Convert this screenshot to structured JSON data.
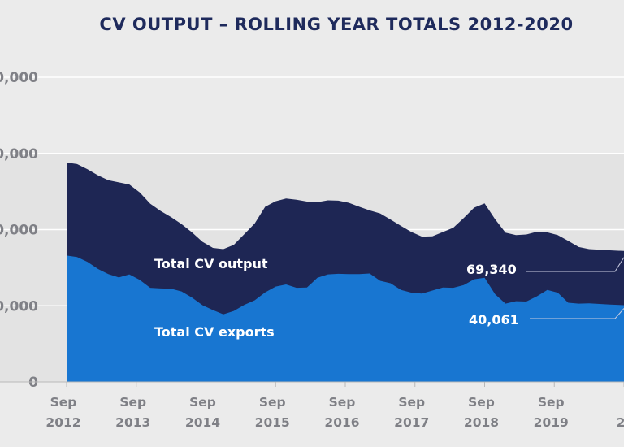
{
  "chart_data": {
    "type": "area",
    "title": "CV OUTPUT – ROLLING YEAR TOTALS 2012-2020",
    "xlabel": "",
    "ylabel": "",
    "ylim": [
      0,
      100000
    ],
    "y_ticks": [
      {
        "value": 0,
        "label": "0"
      },
      {
        "value": 25000,
        "label": "0,000"
      },
      {
        "value": 50000,
        "label": "0,000"
      },
      {
        "value": 75000,
        "label": "0,000"
      },
      {
        "value": 100000,
        "label": "0,000"
      }
    ],
    "x_ticks": [
      {
        "value": 2012.75,
        "line1": "Sep",
        "line2": "2012"
      },
      {
        "value": 2013.75,
        "line1": "Sep",
        "line2": "2013"
      },
      {
        "value": 2014.75,
        "line1": "Sep",
        "line2": "2014"
      },
      {
        "value": 2015.75,
        "line1": "Sep",
        "line2": "2015"
      },
      {
        "value": 2016.75,
        "line1": "Sep",
        "line2": "2016"
      },
      {
        "value": 2017.75,
        "line1": "Sep",
        "line2": "2017"
      },
      {
        "value": 2018.75,
        "line1": "Sep",
        "line2": "2018"
      },
      {
        "value": 2019.75,
        "line1": "Sep",
        "line2": "2019"
      },
      {
        "value": 2020.75,
        "line1": "",
        "line2": "2"
      }
    ],
    "grid": true,
    "x": [
      2012.75,
      2012.9,
      2013.05,
      2013.2,
      2013.35,
      2013.5,
      2013.65,
      2013.8,
      2013.95,
      2014.1,
      2014.25,
      2014.4,
      2014.55,
      2014.7,
      2014.85,
      2015.0,
      2015.15,
      2015.3,
      2015.45,
      2015.6,
      2015.75,
      2015.9,
      2016.05,
      2016.2,
      2016.35,
      2016.5,
      2016.65,
      2016.8,
      2016.95,
      2017.1,
      2017.25,
      2017.4,
      2017.55,
      2017.7,
      2017.85,
      2018.0,
      2018.15,
      2018.3,
      2018.45,
      2018.6,
      2018.75,
      2018.9,
      2019.05,
      2019.2,
      2019.35,
      2019.5,
      2019.65,
      2019.8,
      2019.95,
      2020.1,
      2020.25,
      2020.4,
      2020.55,
      2020.75
    ],
    "series": [
      {
        "name": "Total CV output",
        "color": "#1e2654",
        "values": [
          72000,
          71500,
          69800,
          67800,
          66200,
          65500,
          64800,
          62200,
          58500,
          56100,
          54100,
          51800,
          49100,
          46000,
          44000,
          43600,
          45000,
          48500,
          52000,
          57500,
          59300,
          60200,
          59800,
          59200,
          59000,
          59600,
          59500,
          58800,
          57500,
          56300,
          55300,
          53300,
          51200,
          49200,
          47700,
          47800,
          49200,
          50600,
          53800,
          57200,
          58600,
          53400,
          49000,
          48200,
          48400,
          49300,
          49100,
          48200,
          46300,
          44300,
          43600,
          43400,
          43200,
          43000
        ]
      },
      {
        "name": "Total CV exports",
        "color": "#1876d1",
        "values": [
          41500,
          41000,
          39400,
          37100,
          35400,
          34300,
          35300,
          33500,
          30900,
          30700,
          30600,
          29700,
          27700,
          25200,
          23600,
          22200,
          23300,
          25300,
          26800,
          29400,
          31300,
          32000,
          30900,
          31000,
          34200,
          35300,
          35500,
          35400,
          35400,
          35600,
          33200,
          32400,
          30200,
          29300,
          29000,
          30000,
          31000,
          30900,
          31800,
          33700,
          34200,
          28800,
          25700,
          26500,
          26400,
          28100,
          30200,
          29300,
          26000,
          25700,
          25800,
          25600,
          25400,
          25200
        ]
      }
    ],
    "annotations": [
      {
        "series": "Total CV output",
        "label": "69,340"
      },
      {
        "series": "Total CV exports",
        "label": "40,061"
      }
    ]
  }
}
